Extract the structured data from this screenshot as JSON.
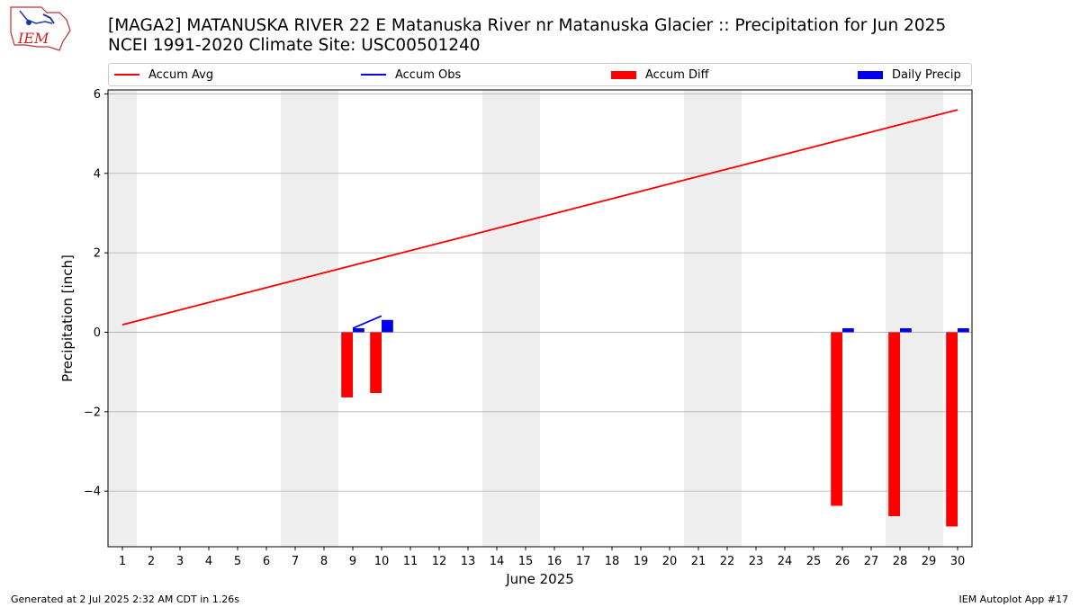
{
  "header": {
    "title_line1": "[MAGA2] MATANUSKA RIVER 22 E Matanuska River nr Matanuska Glacier :: Precipitation for Jun 2025",
    "title_line2": "NCEI 1991-2020 Climate Site: USC00501240",
    "logo_text": "IEM"
  },
  "footer": {
    "generated": "Generated at 2 Jul 2025 2:32 AM CDT in 1.26s",
    "app": "IEM Autoplot App #17"
  },
  "colors": {
    "accum_avg": "#ff0000",
    "accum_obs": "#0000ff",
    "accum_diff": "#ff0000",
    "daily_precip": "#0000ee",
    "weekend_shade": "#eeeeee",
    "grid": "#b0b0b0"
  },
  "chart_data": {
    "type": "bar",
    "xlabel": "June 2025",
    "ylabel": "Precipitation [inch]",
    "xlim": [
      0.5,
      30.5
    ],
    "ylim": [
      -5.4,
      6.1
    ],
    "yticks": [
      -4,
      -2,
      0,
      2,
      4,
      6
    ],
    "ytick_labels": [
      "−4",
      "−2",
      "0",
      "2",
      "4",
      "6"
    ],
    "xticks": [
      1,
      2,
      3,
      4,
      5,
      6,
      7,
      8,
      9,
      10,
      11,
      12,
      13,
      14,
      15,
      16,
      17,
      18,
      19,
      20,
      21,
      22,
      23,
      24,
      25,
      26,
      27,
      28,
      29,
      30
    ],
    "grid": "horizontal",
    "legend": {
      "placement": "top",
      "entries": [
        "Accum Avg",
        "Accum Obs",
        "Accum Diff",
        "Daily Precip"
      ]
    },
    "weekend_spans": [
      [
        0.5,
        1.5
      ],
      [
        6.5,
        8.5
      ],
      [
        13.5,
        15.5
      ],
      [
        20.5,
        22.5
      ],
      [
        27.5,
        29.5
      ]
    ],
    "accum_avg": {
      "days": [
        1,
        30
      ],
      "values": [
        0.19,
        5.6
      ]
    },
    "accum_obs": {
      "days": [
        9,
        10
      ],
      "values": [
        0.1,
        0.41
      ]
    },
    "accum_diff": {
      "days": [
        9,
        10,
        26,
        28,
        30
      ],
      "values": [
        -1.64,
        -1.53,
        -4.37,
        -4.63,
        -4.89
      ]
    },
    "daily_precip": {
      "days": [
        9,
        10,
        26,
        28,
        30
      ],
      "values": [
        0.1,
        0.31,
        0.1,
        0.1,
        0.1
      ]
    }
  }
}
